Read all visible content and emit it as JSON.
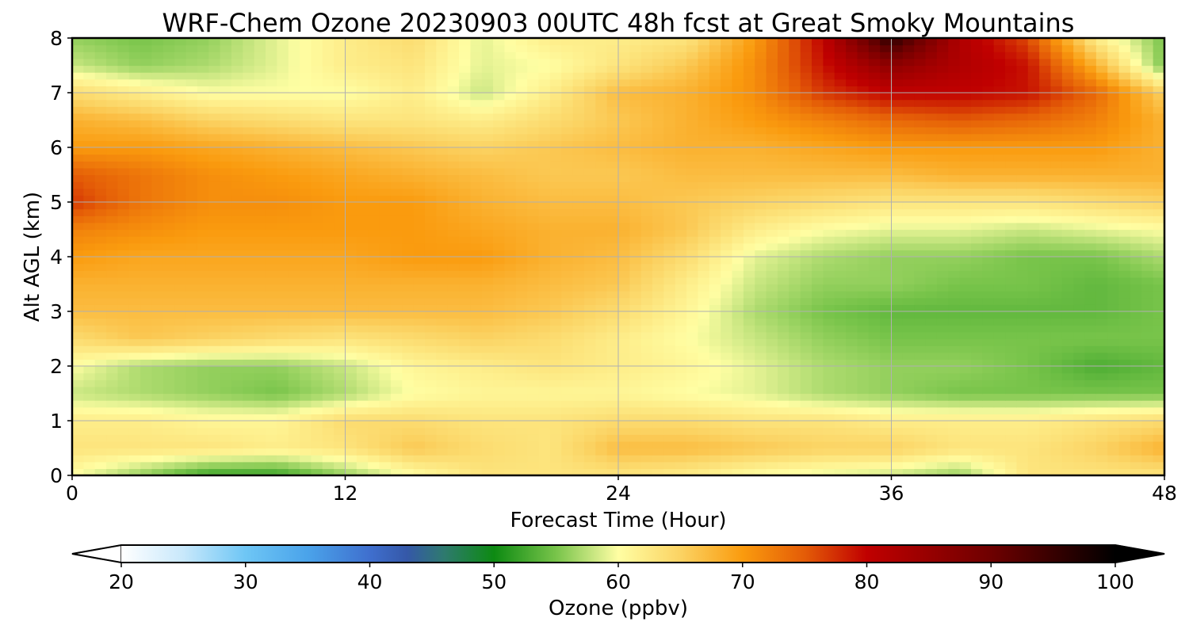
{
  "chart_data": {
    "type": "heatmap",
    "title": "WRF-Chem Ozone  20230903 00UTC 48h fcst at Great Smoky Mountains",
    "xlabel": "Forecast Time (Hour)",
    "ylabel": "Alt AGL (km)",
    "xlim": [
      0,
      48
    ],
    "ylim": [
      0,
      8
    ],
    "x_ticks": [
      0,
      12,
      24,
      36,
      48
    ],
    "y_ticks": [
      0,
      1,
      2,
      3,
      4,
      5,
      6,
      7,
      8
    ],
    "x_tick_labels": [
      "0",
      "12",
      "24",
      "36",
      "48"
    ],
    "y_tick_labels": [
      "0",
      "1",
      "2",
      "3",
      "4",
      "5",
      "6",
      "7",
      "8"
    ],
    "grid": true,
    "x": [
      0,
      3,
      6,
      9,
      12,
      15,
      18,
      21,
      24,
      27,
      30,
      33,
      36,
      39,
      42,
      45,
      48
    ],
    "y": [
      0,
      0.5,
      1,
      1.5,
      2,
      2.5,
      3,
      3.5,
      4,
      4.5,
      5,
      5.5,
      6,
      6.5,
      7,
      7.5,
      8
    ],
    "z": [
      [
        60,
        56,
        52,
        52,
        56,
        60,
        63,
        63,
        63,
        62,
        60,
        59,
        58,
        56,
        63,
        63,
        63
      ],
      [
        63,
        63,
        63,
        62,
        63,
        66,
        64,
        63,
        67,
        67,
        66,
        65,
        65,
        63,
        63,
        65,
        68
      ],
      [
        62,
        62,
        61,
        61,
        64,
        64,
        63,
        63,
        64,
        64,
        63,
        63,
        62,
        62,
        62,
        63,
        64
      ],
      [
        58,
        57,
        56,
        55,
        57,
        60,
        61,
        61,
        61,
        60,
        59,
        57,
        56,
        55,
        55,
        55,
        55
      ],
      [
        60,
        57,
        56,
        56,
        58,
        61,
        62,
        63,
        62,
        61,
        59,
        57,
        56,
        56,
        55,
        53,
        54
      ],
      [
        64,
        66,
        65,
        64,
        63,
        64,
        65,
        64,
        62,
        60,
        58,
        56,
        55,
        55,
        55,
        55,
        55
      ],
      [
        67,
        67,
        67,
        67,
        67,
        67,
        67,
        66,
        64,
        61,
        57,
        55,
        54,
        54,
        54,
        54,
        55
      ],
      [
        68,
        68,
        68,
        68,
        68,
        68,
        68,
        67,
        66,
        62,
        58,
        56,
        56,
        55,
        55,
        54,
        55
      ],
      [
        70,
        69,
        69,
        69,
        69,
        70,
        70,
        68,
        67,
        64,
        59,
        57,
        56,
        56,
        55,
        55,
        57
      ],
      [
        72,
        71,
        70,
        70,
        70,
        70,
        69,
        68,
        68,
        66,
        62,
        60,
        59,
        59,
        58,
        59,
        60
      ],
      [
        77,
        73,
        71,
        71,
        70,
        70,
        68,
        67,
        67,
        66,
        65,
        64,
        63,
        63,
        63,
        64,
        65
      ],
      [
        75,
        73,
        71,
        70,
        69,
        68,
        67,
        66,
        66,
        67,
        67,
        67,
        67,
        68,
        68,
        68,
        68
      ],
      [
        70,
        70,
        69,
        68,
        67,
        66,
        65,
        66,
        67,
        68,
        68,
        69,
        70,
        70,
        70,
        70,
        68
      ],
      [
        68,
        67,
        65,
        64,
        63,
        63,
        62,
        64,
        66,
        68,
        70,
        72,
        74,
        75,
        74,
        72,
        68
      ],
      [
        64,
        62,
        60,
        60,
        60,
        62,
        58,
        62,
        67,
        68,
        71,
        77,
        80,
        80,
        79,
        74,
        65
      ],
      [
        58,
        56,
        57,
        59,
        62,
        63,
        59,
        60,
        63,
        66,
        71,
        79,
        86,
        82,
        79,
        68,
        55
      ],
      [
        56,
        55,
        56,
        59,
        62,
        64,
        59,
        62,
        62,
        63,
        70,
        80,
        96,
        82,
        76,
        62,
        55
      ]
    ],
    "colorbar": {
      "label": "Ozone  (ppbv)",
      "min": 20,
      "max": 100,
      "ticks": [
        20,
        30,
        40,
        50,
        60,
        70,
        80,
        90,
        100
      ],
      "tick_labels": [
        "20",
        "30",
        "40",
        "50",
        "60",
        "70",
        "80",
        "90",
        "100"
      ],
      "extend": "both",
      "under_color": "#ffffff",
      "over_color": "#000000",
      "stops": [
        {
          "v": 20,
          "c": "#ffffff"
        },
        {
          "v": 25,
          "c": "#c8e8fb"
        },
        {
          "v": 30,
          "c": "#6ec6f5"
        },
        {
          "v": 35,
          "c": "#4aa3ea"
        },
        {
          "v": 40,
          "c": "#3f6fce"
        },
        {
          "v": 43,
          "c": "#3558a8"
        },
        {
          "v": 46,
          "c": "#2e7a6e"
        },
        {
          "v": 50,
          "c": "#0d8a12"
        },
        {
          "v": 55,
          "c": "#78c44a"
        },
        {
          "v": 58.5,
          "c": "#d6ec8a"
        },
        {
          "v": 60,
          "c": "#fffea3"
        },
        {
          "v": 65,
          "c": "#fbd363"
        },
        {
          "v": 70,
          "c": "#fa9b0e"
        },
        {
          "v": 75,
          "c": "#e45c07"
        },
        {
          "v": 80,
          "c": "#c00000"
        },
        {
          "v": 90,
          "c": "#6e0000"
        },
        {
          "v": 100,
          "c": "#000000"
        }
      ]
    }
  }
}
